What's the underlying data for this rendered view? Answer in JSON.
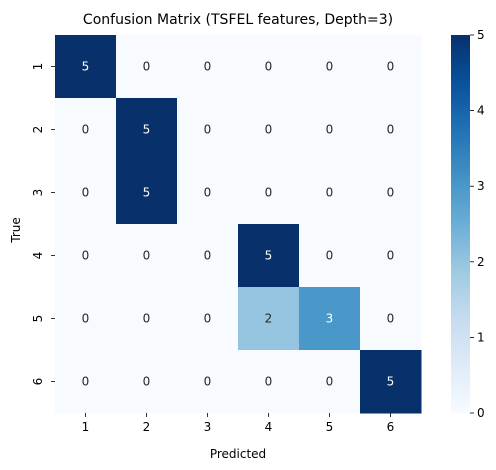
{
  "chart_data": {
    "type": "heatmap",
    "title": "Confusion Matrix (TSFEL features, Depth=3)",
    "xlabel": "Predicted",
    "ylabel": "True",
    "x_categories": [
      "1",
      "2",
      "3",
      "4",
      "5",
      "6"
    ],
    "y_categories": [
      "1",
      "2",
      "3",
      "4",
      "5",
      "6"
    ],
    "values": [
      [
        5,
        0,
        0,
        0,
        0,
        0
      ],
      [
        0,
        5,
        0,
        0,
        0,
        0
      ],
      [
        0,
        5,
        0,
        0,
        0,
        0
      ],
      [
        0,
        0,
        0,
        5,
        0,
        0
      ],
      [
        0,
        0,
        0,
        2,
        3,
        0
      ],
      [
        0,
        0,
        0,
        0,
        0,
        5
      ]
    ],
    "colormap": "Blues",
    "colorbar": {
      "range": [
        0,
        5
      ],
      "ticks": [
        "0",
        "1",
        "2",
        "3",
        "4",
        "5"
      ]
    },
    "colors": {
      "low": "#f7fbff",
      "high": "#08306b"
    }
  }
}
